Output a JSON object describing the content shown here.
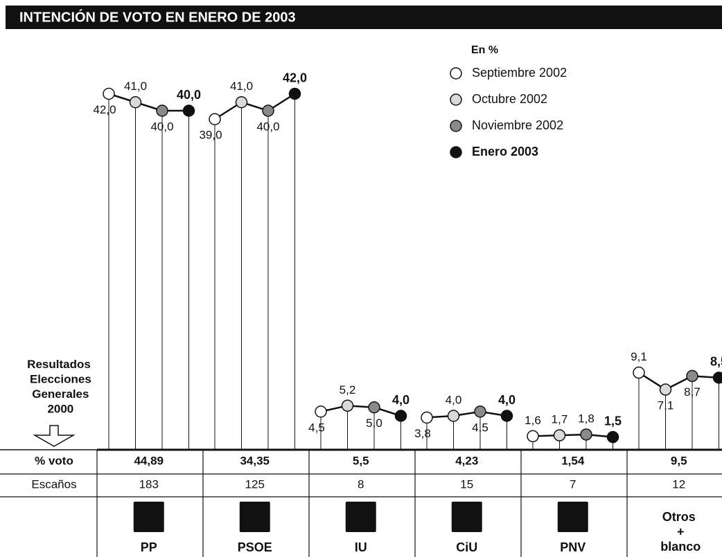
{
  "chart_data": {
    "type": "line",
    "title": "INTENCIÓN DE VOTO EN ENERO DE 2003",
    "legend_title": "En %",
    "categories": [
      "PP",
      "PSOE",
      "IU",
      "CiU",
      "PNV",
      "Otros + blanco"
    ],
    "series": [
      {
        "name": "Septiembre 2002",
        "color": "#ffffff",
        "values": [
          42.0,
          39.0,
          4.5,
          3.8,
          1.6,
          9.1
        ],
        "value_labels": [
          "42,0",
          "39,0",
          "4,5",
          "3,8",
          "1,6",
          "9,1"
        ]
      },
      {
        "name": "Octubre 2002",
        "color": "#d9d9d9",
        "values": [
          41.0,
          41.0,
          5.2,
          4.0,
          1.7,
          7.1
        ],
        "value_labels": [
          "41,0",
          "41,0",
          "5,2",
          "4,0",
          "1,7",
          "7,1"
        ]
      },
      {
        "name": "Noviembre 2002",
        "color": "#8a8a8a",
        "values": [
          40.0,
          40.0,
          5.0,
          4.5,
          1.8,
          8.7
        ],
        "value_labels": [
          "40,0",
          "40,0",
          "5,0",
          "4,5",
          "1,8",
          "8,7"
        ]
      },
      {
        "name": "Enero 2003",
        "color": "#111111",
        "values": [
          40.0,
          42.0,
          4.0,
          4.0,
          1.5,
          8.5
        ],
        "value_labels": [
          "40,0",
          "42,0",
          "4,0",
          "4,0",
          "1,5",
          "8,5"
        ]
      }
    ],
    "results": {
      "title": "Resultados Elecciones Generales 2000",
      "rows": [
        {
          "name": "% voto",
          "values": [
            44.89,
            34.35,
            5.5,
            4.23,
            1.54,
            9.5
          ],
          "value_labels": [
            "44,89",
            "34,35",
            "5,5",
            "4,23",
            "1,54",
            "9,5"
          ]
        },
        {
          "name": "Escaños",
          "values": [
            183,
            125,
            8,
            15,
            7,
            12
          ]
        }
      ]
    }
  }
}
